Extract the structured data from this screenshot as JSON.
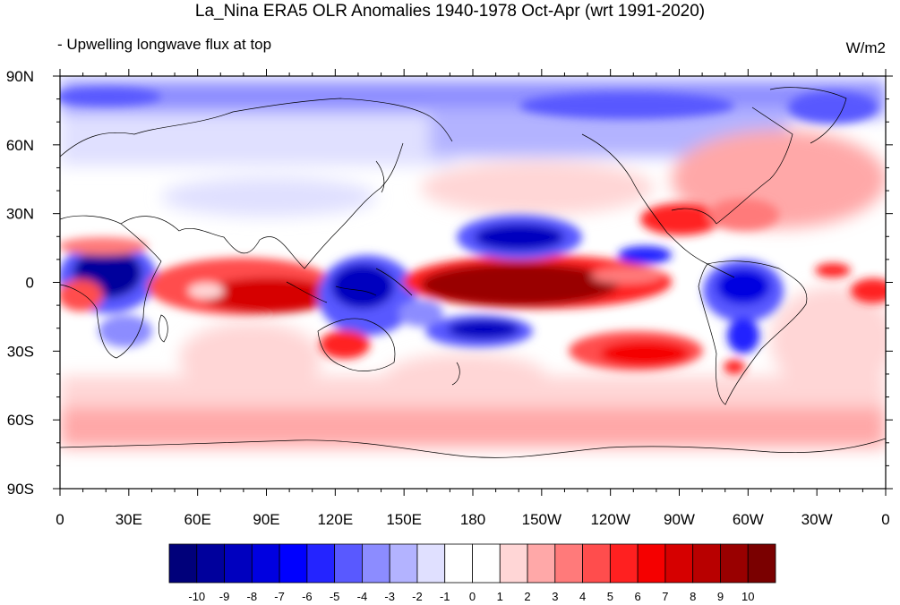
{
  "title": "La_Nina ERA5 OLR Anomalies 1940-1978 Oct-Apr (wrt 1991-2020)",
  "subtitle": "- Upwelling longwave flux at top",
  "units": "W/m2",
  "lat_labels": [
    "90N",
    "60N",
    "30N",
    "0",
    "30S",
    "60S",
    "90S"
  ],
  "lon_labels": [
    "0",
    "30E",
    "60E",
    "90E",
    "120E",
    "150E",
    "180",
    "150W",
    "120W",
    "90W",
    "60W",
    "30W",
    "0"
  ],
  "colorbar": {
    "colors": [
      "#00007a",
      "#00009c",
      "#0000bf",
      "#0000e0",
      "#0000ff",
      "#2424ff",
      "#5959ff",
      "#8c8cff",
      "#b3b3ff",
      "#e0e0ff",
      "#ffffff",
      "#ffffff",
      "#ffd6d6",
      "#ffa8a8",
      "#ff7a7a",
      "#ff4d4d",
      "#ff2020",
      "#f50000",
      "#d60000",
      "#b80000",
      "#990000",
      "#7a0000"
    ],
    "labels": [
      "-10",
      "-9",
      "-8",
      "-7",
      "-6",
      "-5",
      "-4",
      "-3",
      "-2",
      "-1",
      "0",
      "1",
      "2",
      "3",
      "4",
      "5",
      "6",
      "7",
      "8",
      "9",
      "10"
    ]
  },
  "anomaly_regions": [
    {
      "name": "central Pacific positive",
      "lon": 180,
      "lat": 0,
      "value": 10
    },
    {
      "name": "north Pacific negative",
      "lon": 210,
      "lat": 18,
      "value": -7
    },
    {
      "name": "south Pacific negative",
      "lon": 205,
      "lat": -17,
      "value": -7
    },
    {
      "name": "maritime continent negative",
      "lon": 125,
      "lat": -2,
      "value": -6
    },
    {
      "name": "Indian Ocean positive",
      "lon": 80,
      "lat": -7,
      "value": 8
    },
    {
      "name": "Africa negative",
      "lon": 20,
      "lat": -3,
      "value": -9
    },
    {
      "name": "South America negative",
      "lon": 295,
      "lat": -5,
      "value": -6
    },
    {
      "name": "southeast Pacific positive",
      "lon": 255,
      "lat": -27,
      "value": 6
    },
    {
      "name": "Gulf of Mexico positive",
      "lon": 270,
      "lat": 26,
      "value": 6
    },
    {
      "name": "Arctic negative",
      "lon": 200,
      "lat": 80,
      "value": -4
    },
    {
      "name": "Southern Ocean positive",
      "lon": 180,
      "lat": -58,
      "value": 3
    },
    {
      "name": "Australia positive",
      "lon": 130,
      "lat": -26,
      "value": 5
    }
  ]
}
